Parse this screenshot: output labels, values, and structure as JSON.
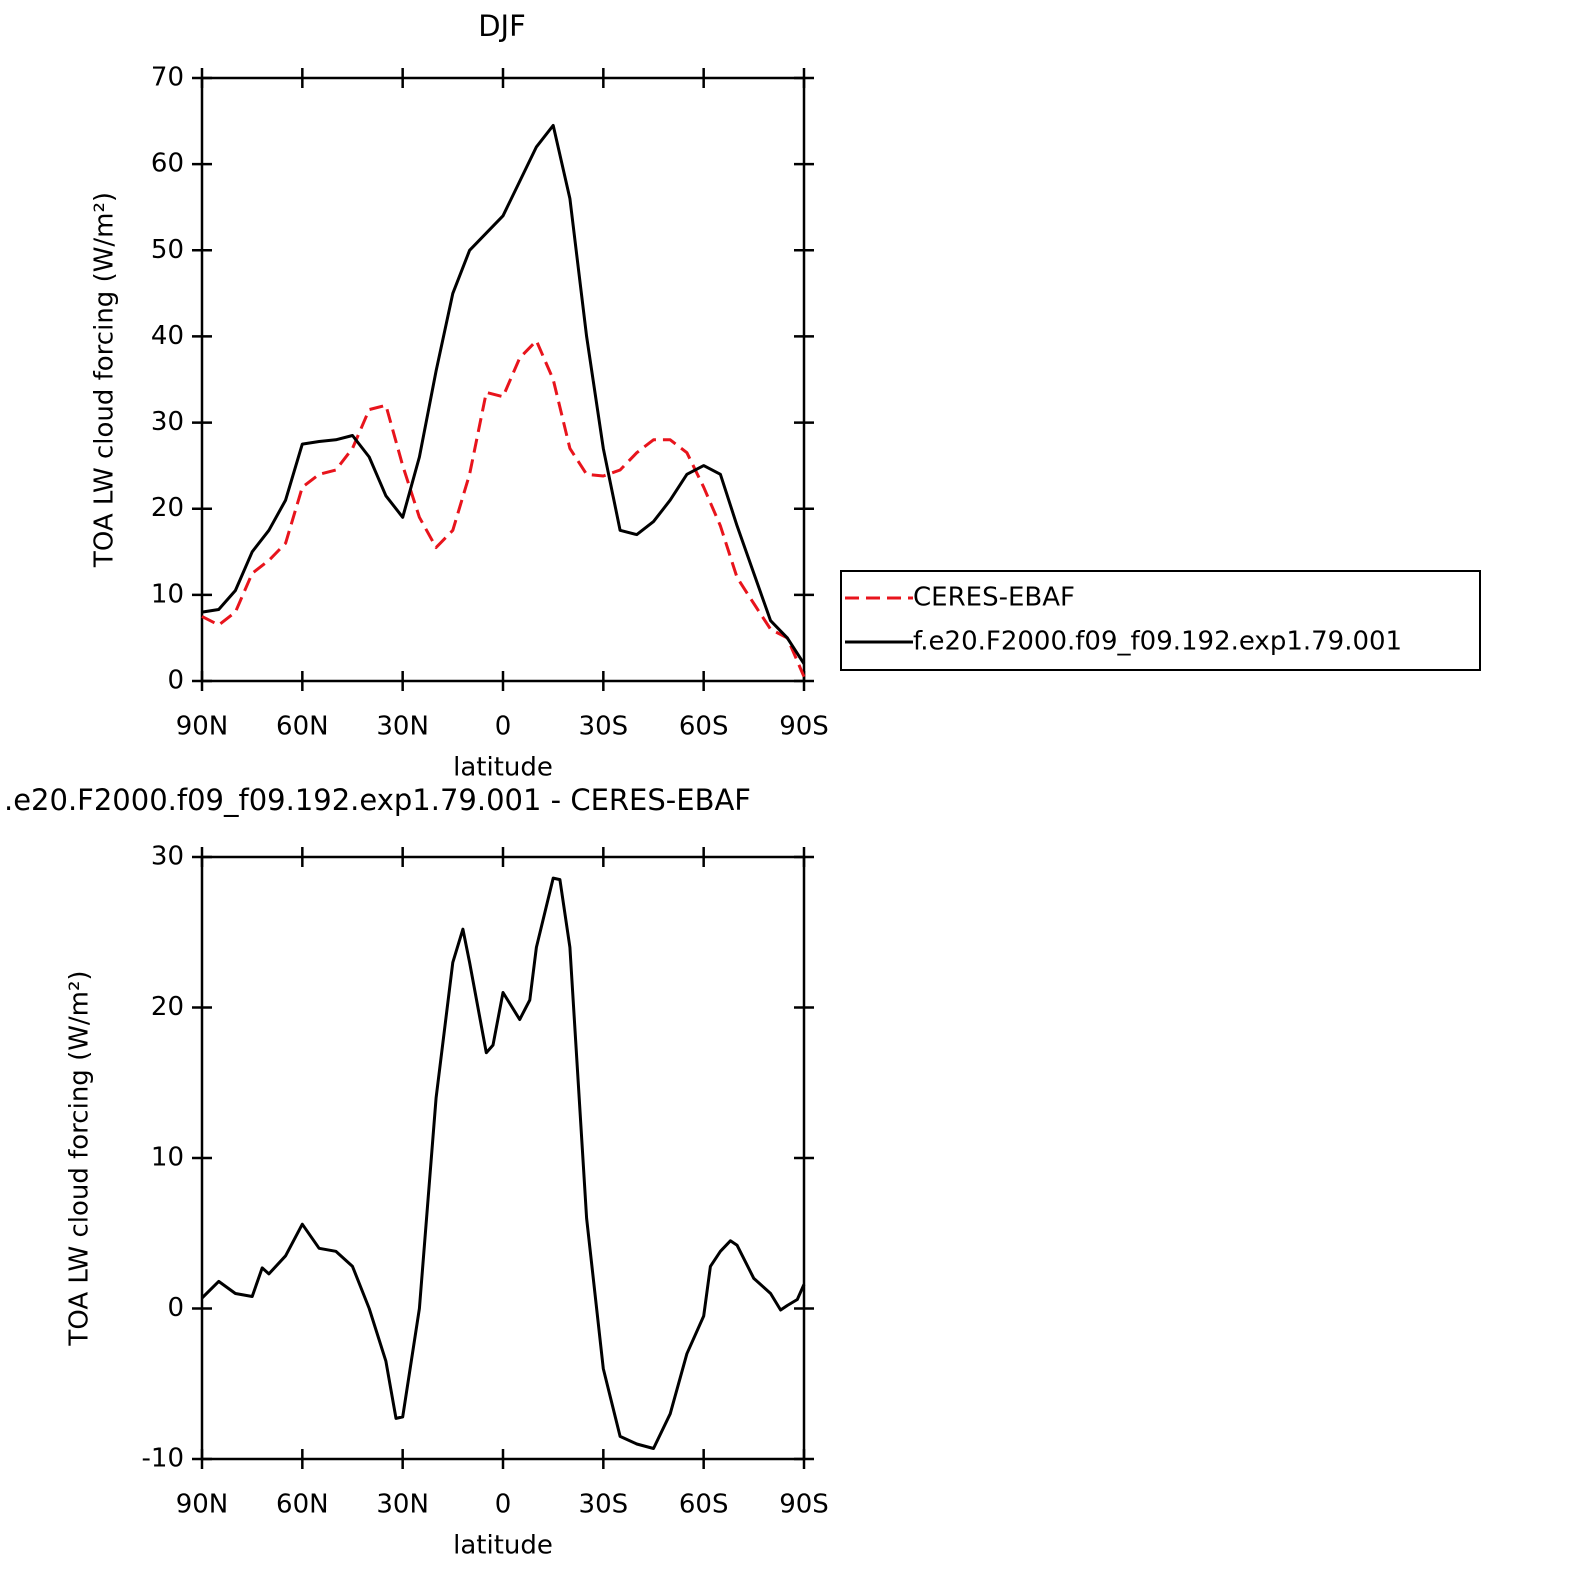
{
  "chart_data": [
    {
      "type": "line",
      "title": "DJF",
      "x_label": "latitude",
      "y_label": "TOA LW cloud forcing (W/m²)",
      "x": [
        90,
        85,
        80,
        75,
        70,
        65,
        60,
        55,
        50,
        45,
        40,
        35,
        30,
        25,
        20,
        15,
        10,
        5,
        0,
        -5,
        -10,
        -15,
        -20,
        -25,
        -30,
        -35,
        -40,
        -45,
        -50,
        -55,
        -60,
        -65,
        -70,
        -75,
        -80,
        -85,
        -90
      ],
      "series": [
        {
          "name": "CERES-EBAF",
          "color": "#e8141c",
          "dash": true,
          "values": [
            7.5,
            6.5,
            8,
            12.5,
            14,
            16,
            22.5,
            24,
            24.5,
            27,
            31.5,
            32,
            25,
            19,
            15.5,
            17.5,
            24,
            33.5,
            33,
            37.5,
            39.5,
            35,
            27,
            24,
            23.8,
            24.5,
            26.5,
            28,
            28,
            26.5,
            22.5,
            18,
            12,
            9,
            6,
            5,
            0.5
          ]
        },
        {
          "name": "f.e20.F2000.f09_f09.192.exp1.79.001",
          "color": "#000000",
          "dash": false,
          "values": [
            8,
            8.3,
            10.5,
            15,
            17.5,
            21,
            27.5,
            27.8,
            28,
            28.5,
            26,
            21.5,
            19,
            26,
            36,
            45,
            50,
            52,
            54,
            58,
            62,
            64.5,
            56,
            40,
            27,
            17.5,
            17,
            18.5,
            21,
            24,
            25,
            24,
            18,
            12.5,
            7,
            5,
            2
          ]
        }
      ],
      "xlim": [
        90,
        -90
      ],
      "ylim": [
        0,
        70
      ],
      "xticks": [
        {
          "value": 90,
          "label": "90N"
        },
        {
          "value": 60,
          "label": "60N"
        },
        {
          "value": 30,
          "label": "30N"
        },
        0,
        {
          "value": -30,
          "label": "30S"
        },
        {
          "value": -60,
          "label": "60S"
        },
        {
          "value": -90,
          "label": "90S"
        }
      ],
      "yticks": [
        0,
        10,
        20,
        30,
        40,
        50,
        60,
        70
      ],
      "legend": "right"
    },
    {
      "type": "line",
      "title": ".e20.F2000.f09_f09.192.exp1.79.001 - CERES-EBAF",
      "x_label": "latitude",
      "y_label": "TOA LW cloud forcing (W/m²)",
      "x": [
        90,
        85,
        80,
        75,
        72,
        70,
        65,
        60,
        55,
        50,
        45,
        40,
        35,
        32,
        30,
        25,
        20,
        15,
        12,
        10,
        5,
        3,
        0,
        -5,
        -8,
        -10,
        -15,
        -17,
        -20,
        -25,
        -30,
        -35,
        -40,
        -45,
        -50,
        -55,
        -60,
        -62,
        -65,
        -68,
        -70,
        -75,
        -80,
        -83,
        -85,
        -88,
        -90
      ],
      "values": [
        0.7,
        1.8,
        1.0,
        0.8,
        2.7,
        2.3,
        3.5,
        5.6,
        4.0,
        3.8,
        2.8,
        0,
        -3.5,
        -7.3,
        -7.2,
        0,
        14,
        23,
        25.2,
        23,
        17,
        17.5,
        21,
        19.2,
        20.5,
        24,
        28.6,
        28.5,
        24,
        6,
        -4,
        -8.5,
        -9,
        -9.3,
        -7,
        -3,
        -0.5,
        2.8,
        3.8,
        4.5,
        4.2,
        2,
        1,
        -0.1,
        0.2,
        0.6,
        1.6
      ],
      "color": "#000000",
      "xlim": [
        90,
        -90
      ],
      "ylim": [
        -10,
        30
      ],
      "xticks": [
        {
          "value": 90,
          "label": "90N"
        },
        {
          "value": 60,
          "label": "60N"
        },
        {
          "value": 30,
          "label": "30N"
        },
        0,
        {
          "value": -30,
          "label": "30S"
        },
        {
          "value": -60,
          "label": "60S"
        },
        {
          "value": -90,
          "label": "90S"
        }
      ],
      "yticks": [
        -10,
        0,
        10,
        20,
        30
      ]
    }
  ]
}
